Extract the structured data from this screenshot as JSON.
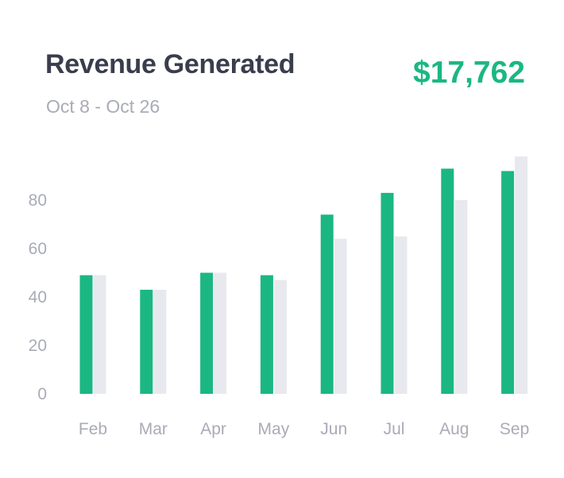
{
  "header": {
    "title": "Revenue Generated",
    "date_range": "Oct 8 - Oct 26",
    "total": "$17,762"
  },
  "colors": {
    "primary": "#1bb783",
    "secondary": "#e8e9ee",
    "title": "#3a3d4c",
    "muted": "#a9abb6"
  },
  "chart_data": {
    "type": "bar",
    "title": "Revenue Generated",
    "subtitle": "Oct 8 - Oct 26",
    "categories": [
      "Feb",
      "Mar",
      "Apr",
      "May",
      "Jun",
      "Jul",
      "Aug",
      "Sep"
    ],
    "series": [
      {
        "values": [
          49,
          43,
          50,
          49,
          74,
          83,
          93,
          92
        ]
      },
      {
        "values": [
          49,
          43,
          50,
          47,
          64,
          65,
          80,
          98
        ]
      }
    ],
    "y_ticks": [
      0,
      20,
      40,
      60,
      80
    ],
    "ylim": [
      0,
      100
    ],
    "grid": false,
    "legend": "none",
    "xlabel": "",
    "ylabel": ""
  }
}
